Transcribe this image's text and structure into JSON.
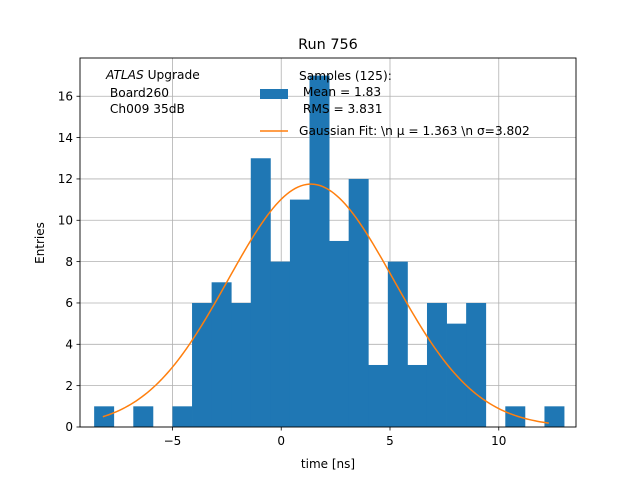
{
  "chart_data": {
    "type": "bar",
    "title": "Run 756",
    "xlabel": "time [ns]",
    "ylabel": "Entries",
    "xlim": [
      -9.25,
      13.55
    ],
    "ylim": [
      0,
      17.85
    ],
    "grid": true,
    "x_ticks": [
      -5,
      0,
      5,
      10
    ],
    "x_tick_labels": [
      "−5",
      "0",
      "5",
      "10"
    ],
    "y_ticks": [
      0,
      2,
      4,
      6,
      8,
      10,
      12,
      14,
      16
    ],
    "y_tick_labels": [
      "0",
      "2",
      "4",
      "6",
      "8",
      "10",
      "12",
      "14",
      "16"
    ],
    "histogram": {
      "bin_start": -8.6,
      "bin_width": 0.9,
      "counts": [
        1,
        0,
        1,
        0,
        1,
        6,
        7,
        6,
        13,
        8,
        11,
        17,
        9,
        12,
        3,
        8,
        3,
        6,
        5,
        6,
        0,
        1,
        0,
        1
      ],
      "color": "#1f77b4"
    },
    "fit_curve": {
      "amplitude": 11.75,
      "mu": 1.363,
      "sigma": 3.802,
      "x_range": [
        -8.2,
        12.3
      ],
      "color": "#ff7f0e"
    },
    "annotation": {
      "line1_italic": "ATLAS",
      "line1_rest": " Upgrade",
      "line2": " Board260",
      "line3": " Ch009 35dB"
    },
    "legend": {
      "location": "top-right",
      "samples_line1": "Samples (125):",
      "samples_line2": " Mean = 1.83",
      "samples_line3": " RMS = 3.831",
      "fit_label": "Gaussian Fit: \\n μ = 1.363 \\n σ=3.802"
    }
  }
}
